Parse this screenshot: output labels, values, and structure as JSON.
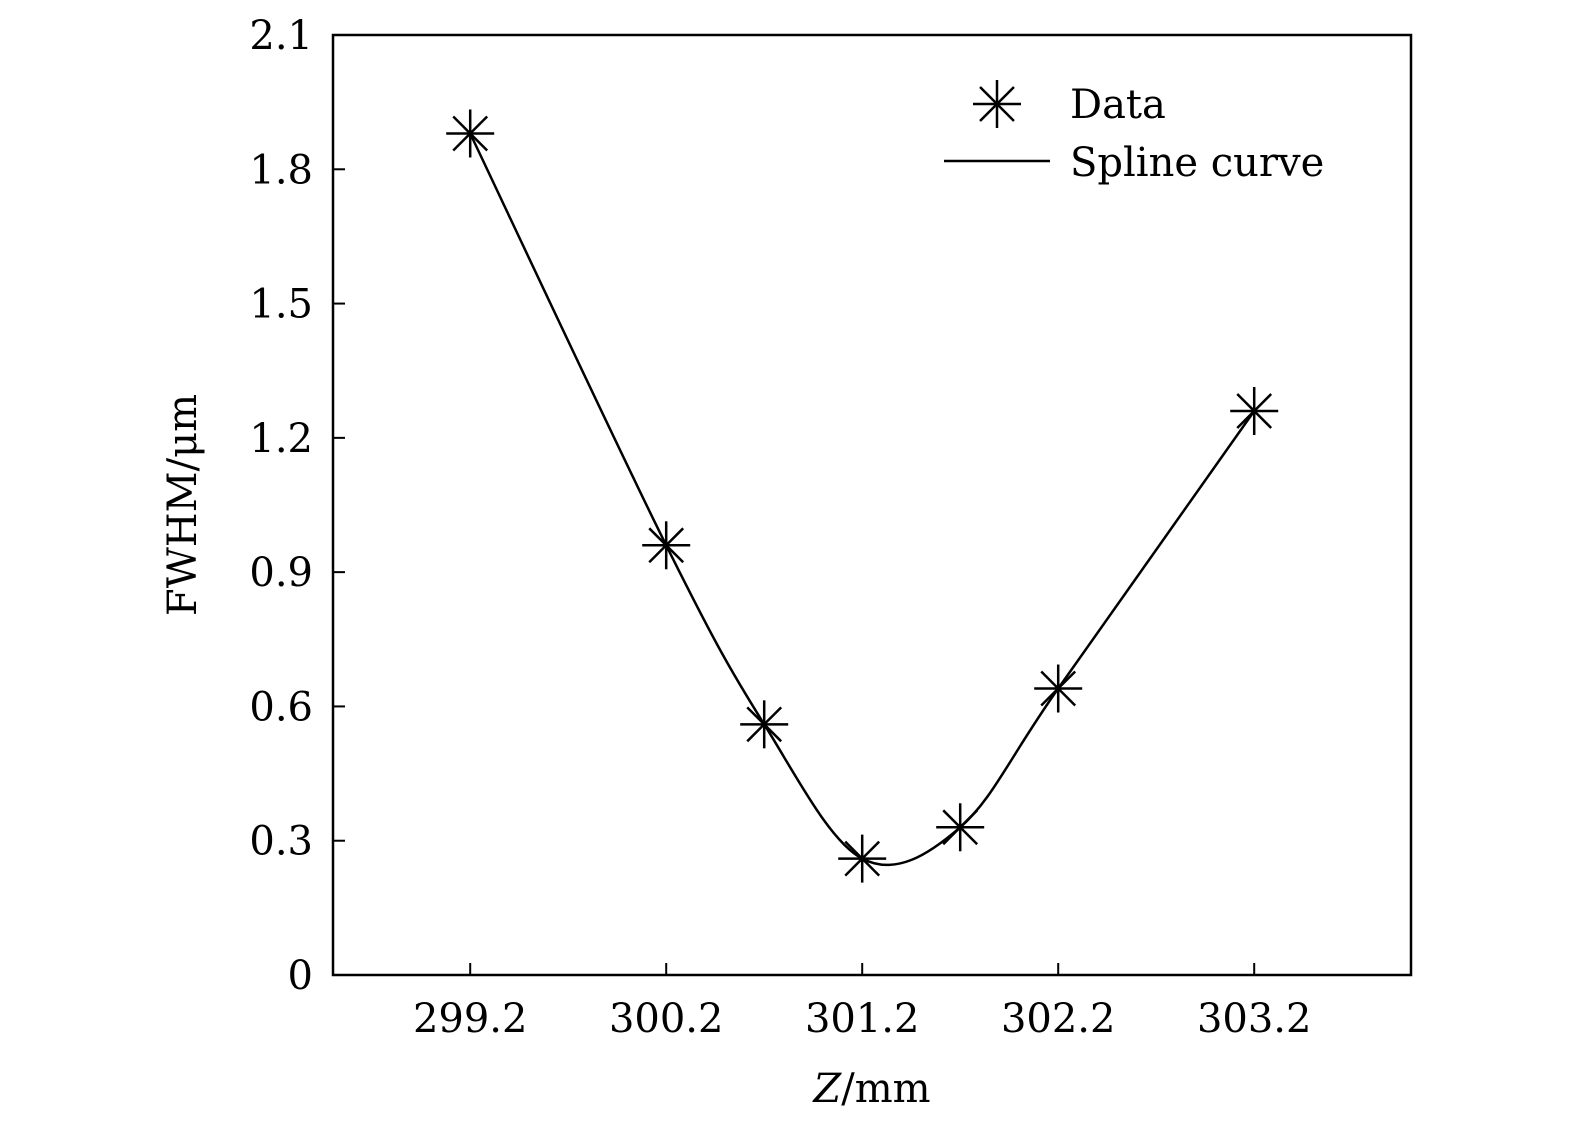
{
  "chart_data": {
    "type": "line",
    "xlabel": "Z/mm",
    "xlabel_italic_part": "Z",
    "xlabel_rest": "/mm",
    "ylabel": "FWHM/μm",
    "xlim": [
      298.5,
      304.0
    ],
    "ylim": [
      0,
      2.1
    ],
    "xticks": [
      299.2,
      300.2,
      301.2,
      302.2,
      303.2
    ],
    "xtick_labels": [
      "299.2",
      "300.2",
      "301.2",
      "302.2",
      "303.2"
    ],
    "yticks": [
      0,
      0.3,
      0.6,
      0.9,
      1.2,
      1.5,
      1.8,
      2.1
    ],
    "ytick_labels": [
      "0",
      "0.3",
      "0.6",
      "0.9",
      "1.2",
      "1.5",
      "1.8",
      "2.1"
    ],
    "grid": false,
    "legend_position": "top-right",
    "series": [
      {
        "name": "Data",
        "style": "markers",
        "marker": "asterisk",
        "x": [
          299.2,
          300.2,
          300.7,
          301.2,
          301.7,
          302.2,
          303.2
        ],
        "y": [
          1.88,
          0.96,
          0.56,
          0.26,
          0.33,
          0.64,
          1.26
        ]
      },
      {
        "name": "Spline curve",
        "style": "line",
        "x": [
          299.2,
          300.2,
          300.7,
          301.2,
          301.7,
          302.2,
          303.2
        ],
        "y": [
          1.88,
          0.96,
          0.56,
          0.26,
          0.33,
          0.64,
          1.26
        ]
      }
    ],
    "colors": {
      "line": "#000000",
      "marker": "#000000",
      "axes": "#000000"
    }
  }
}
